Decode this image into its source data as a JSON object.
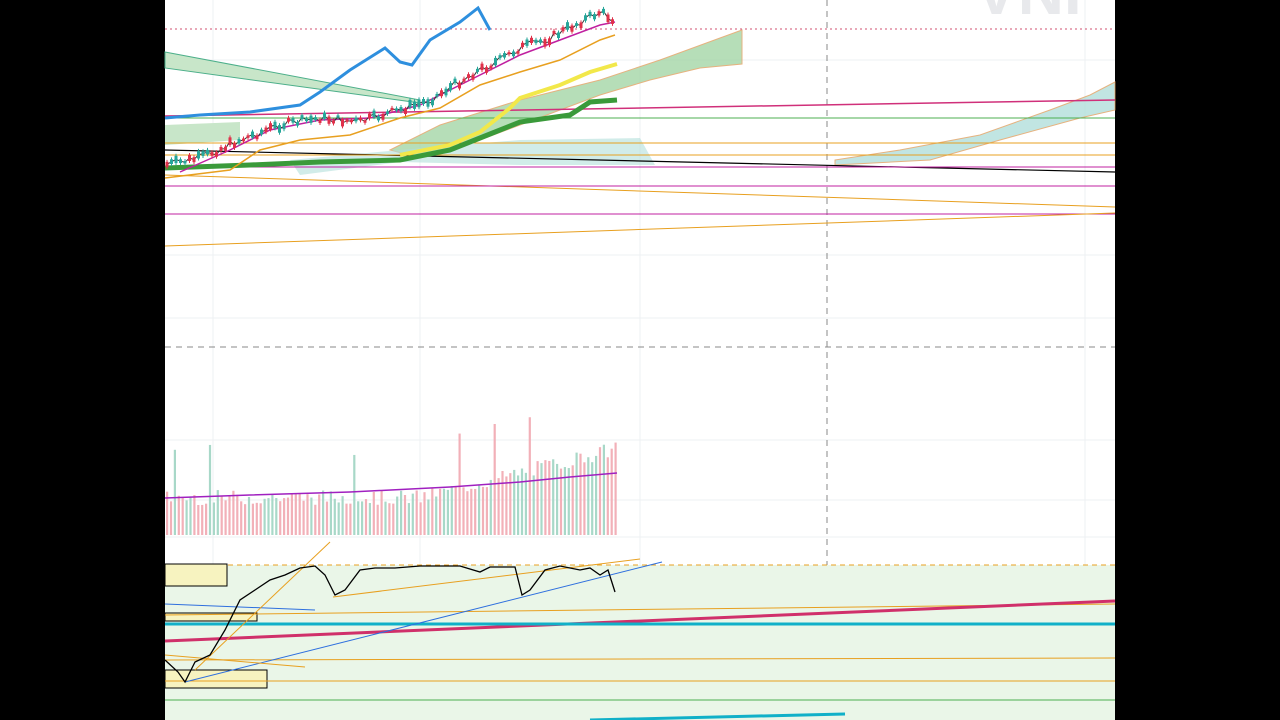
{
  "watermark": "VNI"
}
